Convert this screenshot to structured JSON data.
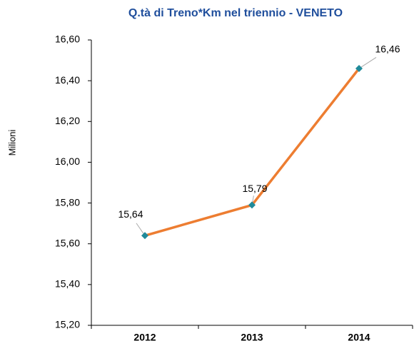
{
  "chart_data": {
    "type": "line",
    "title": "Q.tà di Treno*Km nel triennio - VENETO",
    "y_axis_label": "Milioni",
    "categories": [
      "2012",
      "2013",
      "2014"
    ],
    "values": [
      15.64,
      15.79,
      16.46
    ],
    "value_labels": [
      "15,64",
      "15,79",
      "16,46"
    ],
    "color": "#ed7d31",
    "marker_color": "#1f8a9a",
    "ylim": [
      15.2,
      16.6
    ],
    "yticks": [
      {
        "value": 15.2,
        "label": "15,20"
      },
      {
        "value": 15.4,
        "label": "15,40"
      },
      {
        "value": 15.6,
        "label": "15,60"
      },
      {
        "value": 15.8,
        "label": "15,80"
      },
      {
        "value": 16.0,
        "label": "16,00"
      },
      {
        "value": 16.2,
        "label": "16,20"
      },
      {
        "value": 16.4,
        "label": "16,40"
      },
      {
        "value": 16.6,
        "label": "16,60"
      }
    ],
    "grid": false
  }
}
